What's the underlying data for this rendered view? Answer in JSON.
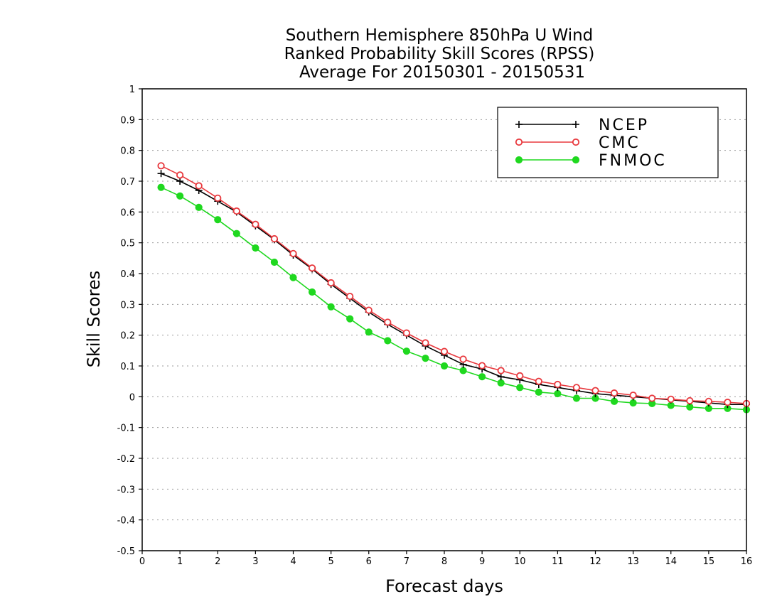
{
  "chart_data": {
    "type": "line",
    "title_lines": [
      "Southern Hemisphere 850hPa U Wind",
      "Ranked Probability Skill Scores (RPSS)",
      "Average For 20150301 - 20150531"
    ],
    "xlabel": "Forecast days",
    "ylabel": "Skill Scores",
    "xlim": [
      0,
      16
    ],
    "ylim": [
      -0.5,
      1
    ],
    "x_ticks": [
      "0",
      "1",
      "2",
      "3",
      "4",
      "5",
      "6",
      "7",
      "8",
      "9",
      "10",
      "11",
      "12",
      "13",
      "14",
      "15",
      "16"
    ],
    "y_ticks": [
      "1",
      "0.9",
      "0.8",
      "0.7",
      "0.6",
      "0.5",
      "0.4",
      "0.3",
      "0.2",
      "0.1",
      "0",
      "-0.1",
      "-0.2",
      "-0.3",
      "-0.4",
      "-0.5"
    ],
    "grid": "horizontal dotted",
    "legend_position": "top-right",
    "x": [
      0.5,
      1,
      1.5,
      2,
      2.5,
      3,
      3.5,
      4,
      4.5,
      5,
      5.5,
      6,
      6.5,
      7,
      7.5,
      8,
      8.5,
      9,
      9.5,
      10,
      10.5,
      11,
      11.5,
      12,
      12.5,
      13,
      13.5,
      14,
      14.5,
      15,
      15.5,
      16
    ],
    "series": [
      {
        "name": "NCEP",
        "color": "#000000",
        "marker": "plus",
        "values": [
          0.725,
          0.7,
          0.67,
          0.635,
          0.6,
          0.555,
          0.51,
          0.46,
          0.415,
          0.365,
          0.32,
          0.275,
          0.235,
          0.2,
          0.165,
          0.135,
          0.105,
          0.09,
          0.065,
          0.055,
          0.04,
          0.03,
          0.02,
          0.01,
          0.005,
          0.0,
          -0.005,
          -0.01,
          -0.015,
          -0.02,
          -0.025,
          -0.025
        ]
      },
      {
        "name": "CMC",
        "color": "#e8383d",
        "marker": "open-circle",
        "values": [
          0.75,
          0.72,
          0.685,
          0.645,
          0.603,
          0.56,
          0.513,
          0.465,
          0.418,
          0.37,
          0.326,
          0.281,
          0.242,
          0.207,
          0.175,
          0.147,
          0.122,
          0.101,
          0.085,
          0.068,
          0.05,
          0.04,
          0.03,
          0.02,
          0.012,
          0.005,
          -0.005,
          -0.008,
          -0.013,
          -0.015,
          -0.018,
          -0.022
        ]
      },
      {
        "name": "FNMOC",
        "color": "#1fd81f",
        "marker": "filled-circle",
        "values": [
          0.68,
          0.652,
          0.615,
          0.575,
          0.53,
          0.483,
          0.437,
          0.387,
          0.34,
          0.292,
          0.253,
          0.21,
          0.182,
          0.148,
          0.125,
          0.1,
          0.085,
          0.065,
          0.045,
          0.03,
          0.015,
          0.01,
          -0.005,
          -0.005,
          -0.015,
          -0.02,
          -0.022,
          -0.028,
          -0.033,
          -0.038,
          -0.038,
          -0.042
        ]
      }
    ]
  }
}
